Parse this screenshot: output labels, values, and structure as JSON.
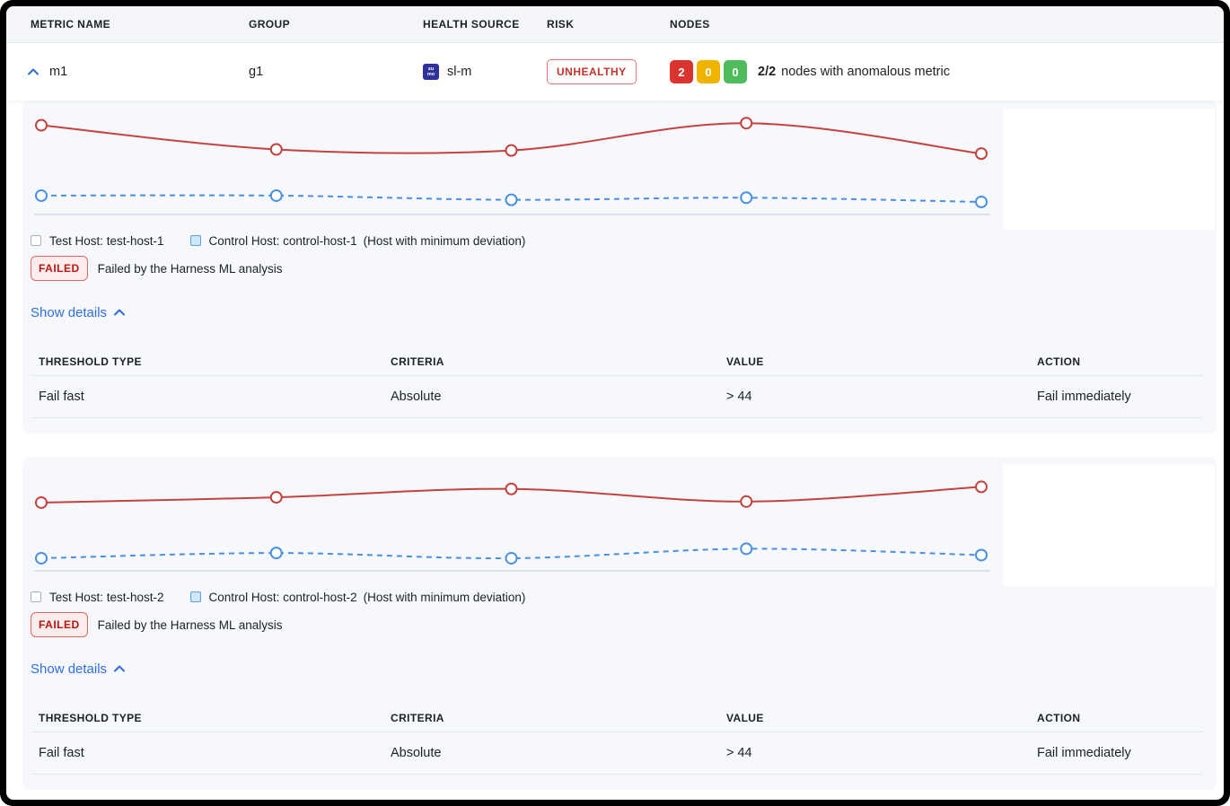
{
  "header": {
    "columns": [
      "METRIC NAME",
      "GROUP",
      "HEALTH SOURCE",
      "RISK",
      "NODES"
    ]
  },
  "metric_row": {
    "name": "m1",
    "group": "g1",
    "health_source": {
      "icon_line1": "su",
      "icon_line2": "mo",
      "label": "sl-m"
    },
    "risk_label": "UNHEALTHY",
    "nodes": {
      "counts": [
        {
          "value": "2",
          "color": "#d9342f"
        },
        {
          "value": "0",
          "color": "#f0b400"
        },
        {
          "value": "0",
          "color": "#4ebc5c"
        }
      ],
      "ratio": "2/2",
      "caption": "nodes with anomalous metric"
    }
  },
  "cards": [
    {
      "legend": {
        "test_label": "Test Host: test-host-1",
        "control_label": "Control Host: control-host-1",
        "note": "(Host with minimum deviation)"
      },
      "status": {
        "badge": "FAILED",
        "message": "Failed by the Harness ML analysis"
      },
      "details_toggle": "Show details",
      "table": {
        "headers": [
          "THRESHOLD TYPE",
          "CRITERIA",
          "VALUE",
          "ACTION"
        ],
        "rows": [
          [
            "Fail fast",
            "Absolute",
            "> 44",
            "Fail immediately"
          ]
        ]
      }
    },
    {
      "legend": {
        "test_label": "Test Host: test-host-2",
        "control_label": "Control Host: control-host-2",
        "note": "(Host with minimum deviation)"
      },
      "status": {
        "badge": "FAILED",
        "message": "Failed by the Harness ML analysis"
      },
      "details_toggle": "Show details",
      "table": {
        "headers": [
          "THRESHOLD TYPE",
          "CRITERIA",
          "VALUE",
          "ACTION"
        ],
        "rows": [
          [
            "Fail fast",
            "Absolute",
            "> 44",
            "Fail immediately"
          ]
        ]
      }
    }
  ],
  "chart_data": [
    {
      "type": "line",
      "x": [
        1,
        2,
        3,
        4,
        5
      ],
      "axes_visible": false,
      "baseline_visible": true,
      "ylim": [
        0,
        100
      ],
      "series": [
        {
          "name": "Test Host: test-host-1",
          "color": "#c5423f",
          "line_style": "solid",
          "marker": "open-circle",
          "values": [
            85,
            62,
            61,
            87,
            58
          ]
        },
        {
          "name": "Control Host: control-host-1",
          "color": "#4a90e2",
          "line_style": "dashed",
          "marker": "open-circle",
          "values": [
            18,
            18,
            14,
            16,
            12
          ]
        }
      ]
    },
    {
      "type": "line",
      "x": [
        1,
        2,
        3,
        4,
        5
      ],
      "axes_visible": false,
      "baseline_visible": true,
      "ylim": [
        0,
        100
      ],
      "series": [
        {
          "name": "Test Host: test-host-2",
          "color": "#c5423f",
          "line_style": "solid",
          "marker": "open-circle",
          "values": [
            65,
            70,
            78,
            66,
            80
          ]
        },
        {
          "name": "Control Host: control-host-2",
          "color": "#4a90e2",
          "line_style": "dashed",
          "marker": "open-circle",
          "values": [
            12,
            17,
            12,
            21,
            15
          ]
        }
      ]
    }
  ],
  "colors": {
    "test_line": "#c5423f",
    "control_line": "#4a90e2",
    "baseline": "#ccd3e2",
    "link": "#2f6fdb",
    "card_bg": "#f6f8fc",
    "risk_text": "#c0362c",
    "failed_text": "#b41712"
  }
}
